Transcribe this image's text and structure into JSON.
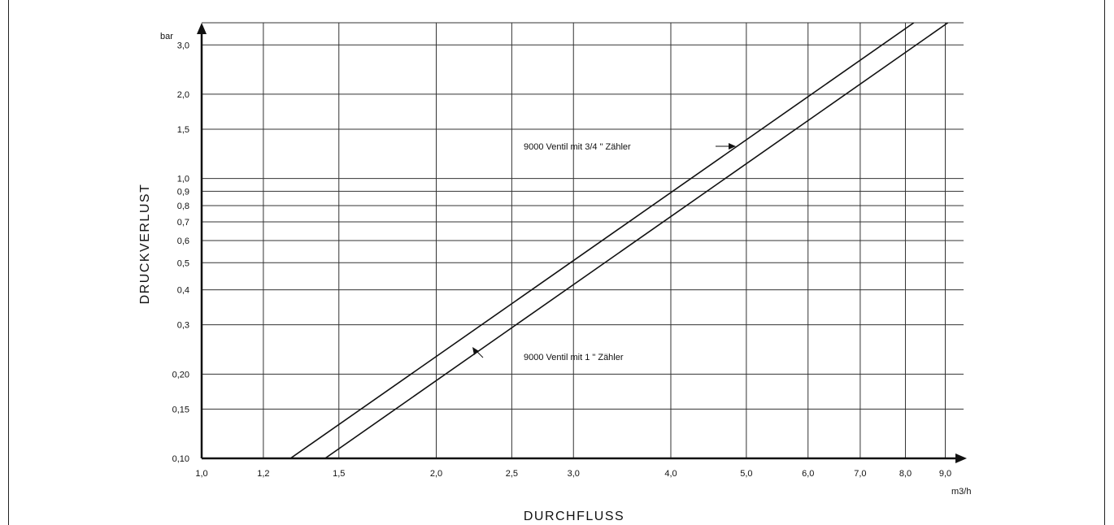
{
  "chart_data": {
    "type": "line",
    "title": "",
    "xlabel": "DURCHFLUSS",
    "ylabel": "DRUCKVERLUST",
    "x_unit": "m3/h",
    "y_unit": "bar",
    "x_scale": "log",
    "y_scale": "log",
    "xlim": [
      1.0,
      9.5
    ],
    "ylim": [
      0.1,
      3.6
    ],
    "grid": true,
    "x_ticks": [
      {
        "value": 1.0,
        "label": "1,0"
      },
      {
        "value": 1.2,
        "label": "1,2"
      },
      {
        "value": 1.5,
        "label": "1,5"
      },
      {
        "value": 2.0,
        "label": "2,0"
      },
      {
        "value": 2.5,
        "label": "2,5"
      },
      {
        "value": 3.0,
        "label": "3,0"
      },
      {
        "value": 4.0,
        "label": "4,0"
      },
      {
        "value": 5.0,
        "label": "5,0"
      },
      {
        "value": 6.0,
        "label": "6,0"
      },
      {
        "value": 7.0,
        "label": "7,0"
      },
      {
        "value": 8.0,
        "label": "8,0"
      },
      {
        "value": 9.0,
        "label": "9,0"
      }
    ],
    "y_ticks": [
      {
        "value": 0.1,
        "label": "0,10"
      },
      {
        "value": 0.15,
        "label": "0,15"
      },
      {
        "value": 0.2,
        "label": "0,20"
      },
      {
        "value": 0.3,
        "label": "0,3"
      },
      {
        "value": 0.4,
        "label": "0,4"
      },
      {
        "value": 0.5,
        "label": "0,5"
      },
      {
        "value": 0.6,
        "label": "0,6"
      },
      {
        "value": 0.7,
        "label": "0,7"
      },
      {
        "value": 0.8,
        "label": "0,8"
      },
      {
        "value": 0.9,
        "label": "0,9"
      },
      {
        "value": 1.0,
        "label": "1,0"
      },
      {
        "value": 1.5,
        "label": "1,5"
      },
      {
        "value": 2.0,
        "label": "2,0"
      },
      {
        "value": 3.0,
        "label": "3,0"
      }
    ],
    "series": [
      {
        "name": "9000 Ventil mit 3/4 \" Zähler",
        "x": [
          1.3,
          8.2
        ],
        "y": [
          0.1,
          3.6
        ]
      },
      {
        "name": "9000 Ventil mit 1 \" Zähler",
        "x": [
          1.44,
          9.07
        ],
        "y": [
          0.1,
          3.6
        ]
      }
    ],
    "annotations": [
      {
        "text": "9000 Ventil mit 3/4 \" Zähler",
        "target_series": 0
      },
      {
        "text": "9000 Ventil mit 1 \" Zähler",
        "target_series": 1
      }
    ]
  }
}
